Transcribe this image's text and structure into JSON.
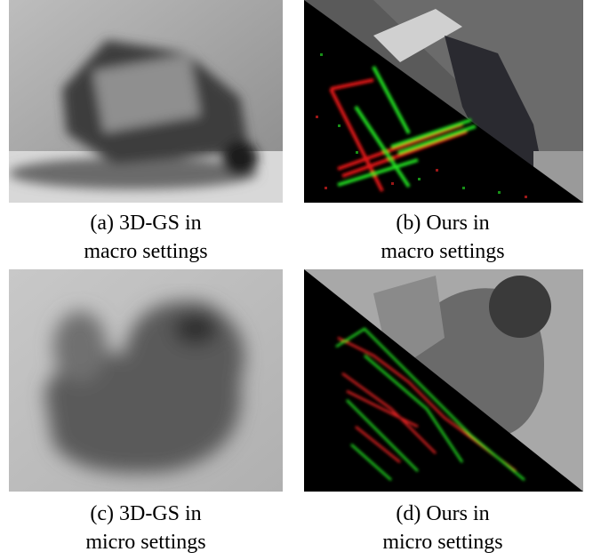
{
  "panels": [
    {
      "caption": [
        "(a) 3D-GS in",
        "macro settings"
      ]
    },
    {
      "caption": [
        "(b) Ours in",
        "macro settings"
      ]
    },
    {
      "caption": [
        "(c) 3D-GS in",
        "micro settings"
      ]
    },
    {
      "caption": [
        "(d) Ours in",
        "micro settings"
      ]
    }
  ]
}
